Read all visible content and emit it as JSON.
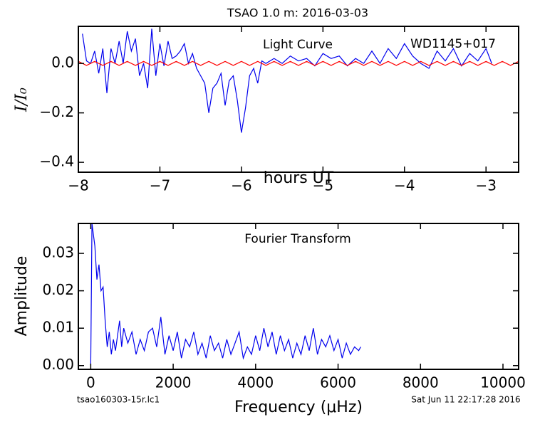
{
  "chart_data": [
    {
      "type": "line",
      "title": "TSAO 1.0 m:  2016-03-03",
      "annotations": [
        "Light Curve",
        "WD1145+017"
      ],
      "ylabel": "I/I₀",
      "xlabel": "hours UT",
      "xlim": [
        -8,
        -2.6
      ],
      "ylim": [
        -0.44,
        0.15
      ],
      "xticks": [
        {
          "value": -8,
          "label": "−8"
        },
        {
          "value": -7,
          "label": "−7"
        },
        {
          "value": -6,
          "label": "−6"
        },
        {
          "value": -5,
          "label": "−5"
        },
        {
          "value": -4,
          "label": "−4"
        },
        {
          "value": -3,
          "label": "−3"
        }
      ],
      "yticks": [
        {
          "value": 0,
          "label": "0.0"
        },
        {
          "value": -0.2,
          "label": "−0.2"
        },
        {
          "value": -0.4,
          "label": "−0.4"
        }
      ],
      "series": [
        {
          "color": "#0000ee",
          "x": [
            -7.95,
            -7.9,
            -7.85,
            -7.8,
            -7.75,
            -7.7,
            -7.65,
            -7.6,
            -7.55,
            -7.5,
            -7.45,
            -7.4,
            -7.35,
            -7.3,
            -7.25,
            -7.2,
            -7.15,
            -7.1,
            -7.05,
            -7.0,
            -6.95,
            -6.9,
            -6.85,
            -6.8,
            -6.75,
            -6.7,
            -6.65,
            -6.6,
            -6.55,
            -6.5,
            -6.45,
            -6.4,
            -6.35,
            -6.3,
            -6.25,
            -6.2,
            -6.15,
            -6.1,
            -6.05,
            -6.0,
            -5.95,
            -5.9,
            -5.85,
            -5.8,
            -5.75,
            -5.7,
            -5.6,
            -5.5,
            -5.4,
            -5.3,
            -5.2,
            -5.1,
            -5.0,
            -4.9,
            -4.8,
            -4.7,
            -4.6,
            -4.5,
            -4.4,
            -4.3,
            -4.2,
            -4.1,
            -4.0,
            -3.9,
            -3.8,
            -3.7,
            -3.6,
            -3.5,
            -3.4,
            -3.3,
            -3.2,
            -3.1,
            -3.0,
            -2.93
          ],
          "values": [
            0.12,
            0.01,
            0.0,
            0.05,
            -0.04,
            0.06,
            -0.12,
            0.06,
            0.0,
            0.09,
            0.0,
            0.13,
            0.05,
            0.1,
            -0.05,
            0.0,
            -0.1,
            0.14,
            -0.05,
            0.08,
            -0.01,
            0.09,
            0.02,
            0.03,
            0.05,
            0.08,
            0.0,
            0.04,
            -0.02,
            -0.05,
            -0.08,
            -0.2,
            -0.1,
            -0.08,
            -0.04,
            -0.17,
            -0.07,
            -0.05,
            -0.15,
            -0.28,
            -0.18,
            -0.05,
            -0.02,
            -0.08,
            0.01,
            0.0,
            0.02,
            0.0,
            0.03,
            0.01,
            0.02,
            -0.01,
            0.04,
            0.02,
            0.03,
            -0.01,
            0.02,
            0.0,
            0.05,
            0.0,
            0.06,
            0.02,
            0.08,
            0.03,
            0.0,
            -0.02,
            0.05,
            0.01,
            0.06,
            -0.01,
            0.04,
            0.01,
            0.06,
            0.0
          ]
        },
        {
          "color": "#ff0000",
          "x": [
            -8.0,
            -7.9,
            -7.8,
            -7.7,
            -7.6,
            -7.5,
            -7.4,
            -7.3,
            -7.2,
            -7.1,
            -7.0,
            -6.9,
            -6.8,
            -6.7,
            -6.6,
            -6.5,
            -6.4,
            -6.3,
            -6.2,
            -6.1,
            -6.0,
            -5.9,
            -5.8,
            -5.7,
            -5.6,
            -5.5,
            -5.4,
            -5.3,
            -5.2,
            -5.1,
            -5.0,
            -4.9,
            -4.8,
            -4.7,
            -4.6,
            -4.5,
            -4.4,
            -4.3,
            -4.2,
            -4.1,
            -4.0,
            -3.9,
            -3.8,
            -3.7,
            -3.6,
            -3.5,
            -3.4,
            -3.3,
            -3.2,
            -3.1,
            -3.0,
            -2.9,
            -2.8,
            -2.7,
            -2.6
          ],
          "values": [
            0.008,
            -0.008,
            0.008,
            -0.008,
            0.008,
            -0.008,
            0.008,
            -0.008,
            0.008,
            -0.008,
            0.008,
            -0.008,
            0.008,
            -0.008,
            0.008,
            -0.008,
            0.008,
            -0.008,
            0.008,
            -0.008,
            0.008,
            -0.008,
            0.008,
            -0.008,
            0.008,
            -0.008,
            0.008,
            -0.008,
            0.008,
            -0.008,
            0.008,
            -0.008,
            0.008,
            -0.008,
            0.008,
            -0.008,
            0.008,
            -0.008,
            0.008,
            -0.008,
            0.008,
            -0.008,
            0.008,
            -0.008,
            0.008,
            -0.008,
            0.008,
            -0.008,
            0.008,
            -0.008,
            0.008,
            -0.008,
            0.008,
            -0.008,
            0.008
          ]
        }
      ]
    },
    {
      "type": "line",
      "annotations": [
        "Fourier Transform"
      ],
      "ylabel": "Amplitude",
      "xlabel": "Frequency (μHz)",
      "xlim": [
        -300,
        10380
      ],
      "ylim": [
        -0.001,
        0.038
      ],
      "xticks": [
        0,
        2000,
        4000,
        6000,
        8000,
        10000
      ],
      "yticks": [
        {
          "value": 0,
          "label": "0.00"
        },
        {
          "value": 0.01,
          "label": "0.01"
        },
        {
          "value": 0.02,
          "label": "0.02"
        },
        {
          "value": 0.03,
          "label": "0.03"
        }
      ],
      "series": [
        {
          "color": "#0000ee",
          "x": [
            0,
            30,
            100,
            150,
            200,
            250,
            300,
            350,
            400,
            450,
            500,
            550,
            600,
            650,
            700,
            750,
            800,
            900,
            1000,
            1100,
            1200,
            1300,
            1400,
            1500,
            1600,
            1700,
            1800,
            1900,
            2000,
            2100,
            2200,
            2300,
            2400,
            2500,
            2600,
            2700,
            2800,
            2900,
            3000,
            3100,
            3200,
            3300,
            3400,
            3500,
            3600,
            3700,
            3800,
            3900,
            4000,
            4100,
            4200,
            4300,
            4400,
            4500,
            4600,
            4700,
            4800,
            4900,
            5000,
            5100,
            5200,
            5300,
            5400,
            5500,
            5600,
            5700,
            5800,
            5900,
            6000,
            6100,
            6200,
            6300,
            6400,
            6500,
            6550
          ],
          "values": [
            0.0,
            0.038,
            0.032,
            0.023,
            0.027,
            0.02,
            0.021,
            0.012,
            0.005,
            0.009,
            0.003,
            0.007,
            0.004,
            0.008,
            0.012,
            0.005,
            0.01,
            0.006,
            0.009,
            0.003,
            0.007,
            0.004,
            0.009,
            0.01,
            0.005,
            0.013,
            0.003,
            0.008,
            0.004,
            0.009,
            0.002,
            0.007,
            0.005,
            0.009,
            0.003,
            0.006,
            0.002,
            0.008,
            0.004,
            0.006,
            0.002,
            0.007,
            0.003,
            0.006,
            0.009,
            0.002,
            0.005,
            0.003,
            0.008,
            0.004,
            0.01,
            0.005,
            0.009,
            0.003,
            0.008,
            0.004,
            0.007,
            0.002,
            0.006,
            0.003,
            0.008,
            0.004,
            0.01,
            0.003,
            0.007,
            0.005,
            0.008,
            0.004,
            0.007,
            0.002,
            0.006,
            0.003,
            0.005,
            0.004,
            0.005
          ]
        }
      ]
    }
  ],
  "footer": {
    "file": "tsao160303-15r.lc1",
    "date": "Sat Jun 11 22:17:28 2016"
  }
}
